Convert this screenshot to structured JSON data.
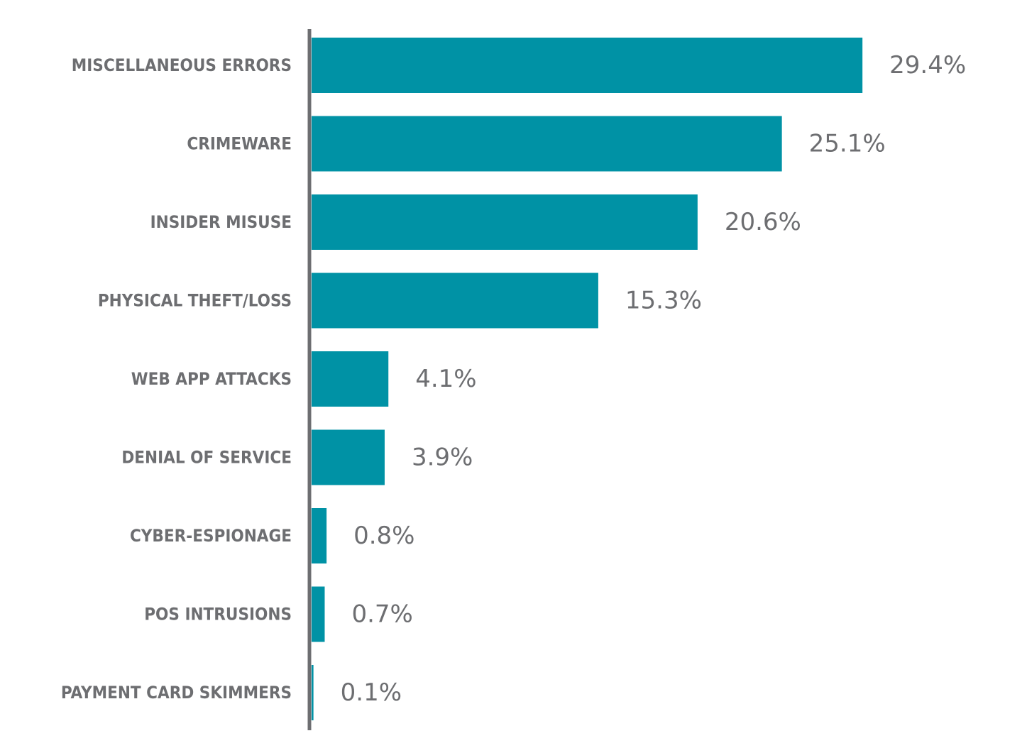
{
  "chart_data": {
    "type": "bar",
    "orientation": "horizontal",
    "categories": [
      "MISCELLANEOUS ERRORS",
      "CRIMEWARE",
      "INSIDER MISUSE",
      "PHYSICAL THEFT/LOSS",
      "WEB APP ATTACKS",
      "DENIAL OF SERVICE",
      "CYBER-ESPIONAGE",
      "POS INTRUSIONS",
      "PAYMENT CARD SKIMMERS"
    ],
    "values": [
      29.4,
      25.1,
      20.6,
      15.3,
      4.1,
      3.9,
      0.8,
      0.7,
      0.1
    ],
    "value_labels": [
      "29.4%",
      "25.1%",
      "20.6%",
      "15.3%",
      "4.1%",
      "3.9%",
      "0.8%",
      "0.7%",
      "0.1%"
    ],
    "title": "",
    "xlabel": "",
    "ylabel": "",
    "xlim": [
      0,
      30
    ],
    "grid": false,
    "legend": "none",
    "colors": {
      "bar": "#0092a5",
      "axis": "#6d6e71",
      "text": "#6d6e71"
    }
  }
}
